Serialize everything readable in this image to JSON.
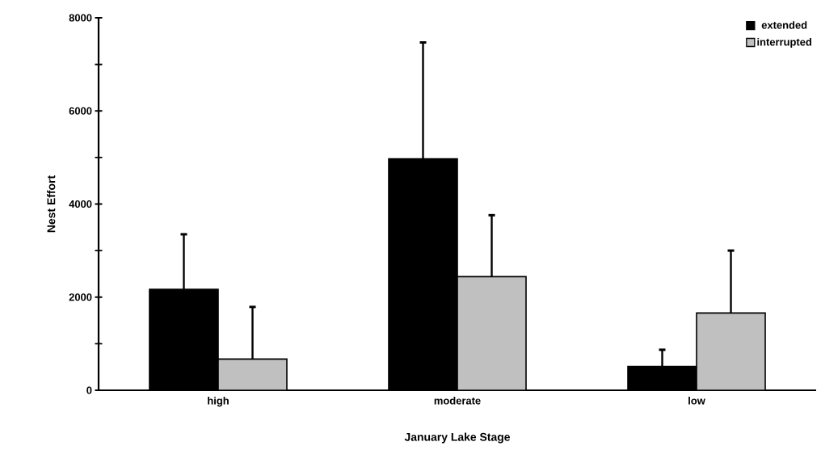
{
  "chart_data": {
    "type": "bar",
    "xlabel": "January Lake Stage",
    "ylabel": "Nest Effort",
    "categories": [
      "high",
      "moderate",
      "low"
    ],
    "series": [
      {
        "name": "extended",
        "color": "#000000",
        "values": [
          2170,
          4970,
          510
        ],
        "errors": [
          1180,
          2500,
          360
        ]
      },
      {
        "name": "interrupted",
        "color": "#c0c0c0",
        "values": [
          670,
          2440,
          1660
        ],
        "errors": [
          1120,
          1320,
          1340
        ]
      }
    ],
    "ylim": [
      0,
      8000
    ],
    "yticks": [
      0,
      {
        "value": 1000,
        "label": null
      },
      2000,
      {
        "value": 3000,
        "label": null
      },
      4000,
      {
        "value": 5000,
        "label": null
      },
      6000,
      {
        "value": 7000,
        "label": null
      },
      8000
    ],
    "legend": "top right",
    "grid": false
  }
}
